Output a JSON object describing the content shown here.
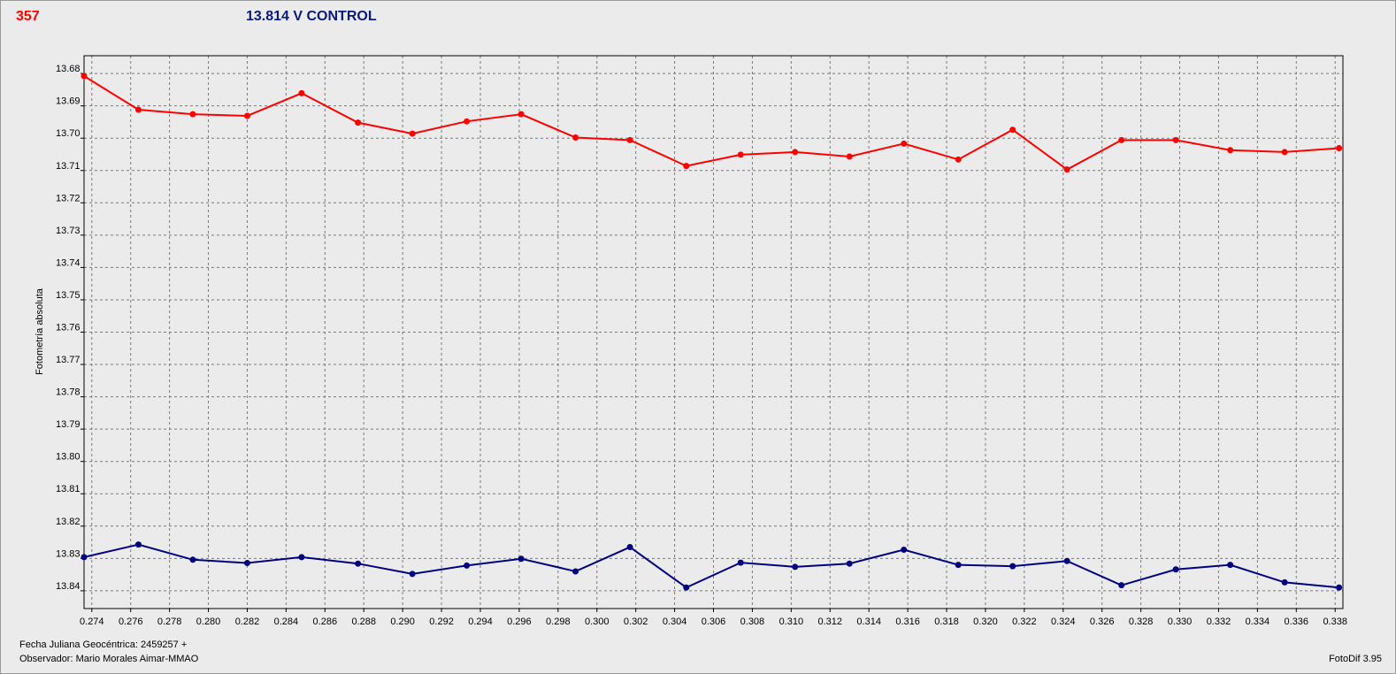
{
  "header": {
    "star_id": "357",
    "control_label": "13.814 V CONTROL"
  },
  "footer": {
    "date_label": "Fecha Juliana Geocéntrica: 2459257 +",
    "observer_label": "Observador: Mario Morales Aimar-MMAO",
    "software_label": "FotoDif 3.95"
  },
  "chart_data": {
    "type": "line",
    "title": "",
    "xlabel": "Fecha Juliana Geocéntrica: 2459257 +",
    "ylabel": "Fotometría absoluta",
    "xlim": [
      0.2736,
      0.3384
    ],
    "ylim": [
      13.6745,
      13.8455
    ],
    "y_inverted": true,
    "grid": true,
    "legend": "none",
    "x_ticks": [
      "0.274",
      "0.276",
      "0.278",
      "0.280",
      "0.282",
      "0.284",
      "0.286",
      "0.288",
      "0.290",
      "0.292",
      "0.294",
      "0.296",
      "0.298",
      "0.300",
      "0.302",
      "0.304",
      "0.306",
      "0.308",
      "0.310",
      "0.312",
      "0.314",
      "0.316",
      "0.318",
      "0.320",
      "0.322",
      "0.324",
      "0.326",
      "0.328",
      "0.330",
      "0.332",
      "0.334",
      "0.336",
      "0.338"
    ],
    "y_ticks": [
      "13.68",
      "13.69",
      "13.70",
      "13.71",
      "13.72",
      "13.73",
      "13.74",
      "13.75",
      "13.76",
      "13.77",
      "13.78",
      "13.79",
      "13.80",
      "13.81",
      "13.82",
      "13.83",
      "13.84"
    ],
    "x": [
      0.2736,
      0.2764,
      0.2792,
      0.282,
      0.2848,
      0.2877,
      0.2905,
      0.2933,
      0.2961,
      0.2989,
      0.3017,
      0.3046,
      0.3074,
      0.3102,
      0.313,
      0.3158,
      0.3186,
      0.3214,
      0.3242,
      0.327,
      0.3298,
      0.3326,
      0.3354,
      0.3382
    ],
    "series": [
      {
        "color": "#ff0000",
        "values": [
          13.6808,
          13.6912,
          13.6926,
          13.6931,
          13.6861,
          13.6952,
          13.6986,
          13.6948,
          13.6926,
          13.6998,
          13.7006,
          13.7086,
          13.7051,
          13.7043,
          13.7057,
          13.7017,
          13.7066,
          13.6974,
          13.7097,
          13.7006,
          13.7006,
          13.7037,
          13.7043,
          13.7031
        ]
      },
      {
        "color": "#000080",
        "values": [
          13.8296,
          13.8257,
          13.8304,
          13.8314,
          13.8296,
          13.8316,
          13.8348,
          13.8322,
          13.8301,
          13.834,
          13.8265,
          13.839,
          13.8313,
          13.8326,
          13.8316,
          13.8273,
          13.832,
          13.8324,
          13.8308,
          13.8383,
          13.8334,
          13.832,
          13.8374,
          13.839
        ]
      }
    ]
  }
}
